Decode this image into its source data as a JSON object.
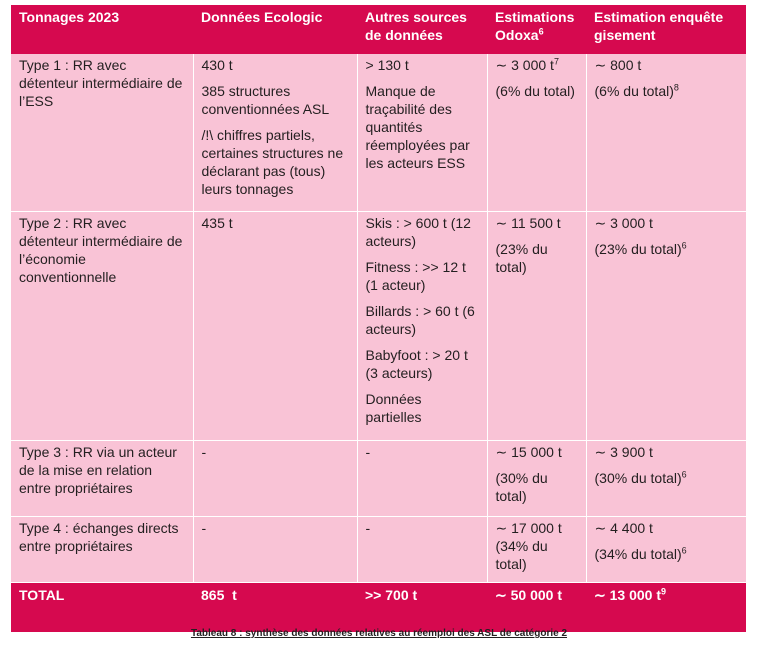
{
  "table": {
    "headers": [
      "Tonnages 2023",
      "Données Ecologic",
      "Autres sources de données",
      "Estimations Odoxa",
      "Estimation enquête gisement"
    ],
    "header_sup": "6",
    "rows": [
      {
        "type": "Type 1 : RR avec détenteur intermédiaire de l’ESS",
        "ecologic": [
          "430 t",
          "385 structures conventionnées ASL",
          "/!\\ chiffres partiels, certaines structures ne déclarant pas (tous) leurs tonnages"
        ],
        "autres": [
          "> 130 t",
          "Manque de traçabilité des quantités réemployées par les acteurs ESS"
        ],
        "odoxa": [
          "∼ 3 000 t",
          "(6% du total)"
        ],
        "odoxa_sup": "7",
        "gisement": [
          "∼ 800 t",
          "(6% du total)"
        ],
        "gisement_sup": "8"
      },
      {
        "type": "Type 2 : RR avec détenteur intermédiaire de l’économie conventionnelle",
        "ecologic": [
          "435 t"
        ],
        "autres": [
          "Skis : > 600 t (12 acteurs)",
          "Fitness : >> 12 t (1 acteur)",
          "Billards : > 60 t (6 acteurs)",
          "Babyfoot : > 20 t (3 acteurs)",
          "Données partielles"
        ],
        "odoxa": [
          "∼ 11 500 t",
          "(23% du total)"
        ],
        "odoxa_sup": "",
        "gisement": [
          "∼ 3 000 t",
          "(23% du total)"
        ],
        "gisement_sup": "6"
      },
      {
        "type": "Type 3 : RR via un acteur de la mise en relation entre propriétaires",
        "ecologic": [
          "-"
        ],
        "autres": [
          "-"
        ],
        "odoxa": [
          "∼ 15 000 t",
          "(30% du total)"
        ],
        "odoxa_sup": "",
        "gisement": [
          "∼ 3 900 t",
          "(30% du total)"
        ],
        "gisement_sup": "6"
      },
      {
        "type": "Type 4 : échanges directs entre propriétaires",
        "ecologic": [
          "-"
        ],
        "autres": [
          "-"
        ],
        "odoxa": [
          "∼ 17 000 t",
          "(34% du total)"
        ],
        "odoxa_sup": "",
        "gisement": [
          "∼ 4 400 t",
          "(34% du total)"
        ],
        "gisement_sup": "6"
      }
    ],
    "total": {
      "label": "TOTAL",
      "ecologic": "865  t",
      "autres": ">> 700 t",
      "odoxa": "∼ 50 000 t",
      "gisement": "∼ 13 000 t",
      "gisement_sup": "9"
    }
  },
  "caption": "Tableau 8 : synthèse des données relatives au réemploi des ASL de catégorie 2",
  "colors": {
    "header_bg": "#d6094f",
    "row_bg": "#f9c3d6",
    "header_text": "#ffffff"
  }
}
